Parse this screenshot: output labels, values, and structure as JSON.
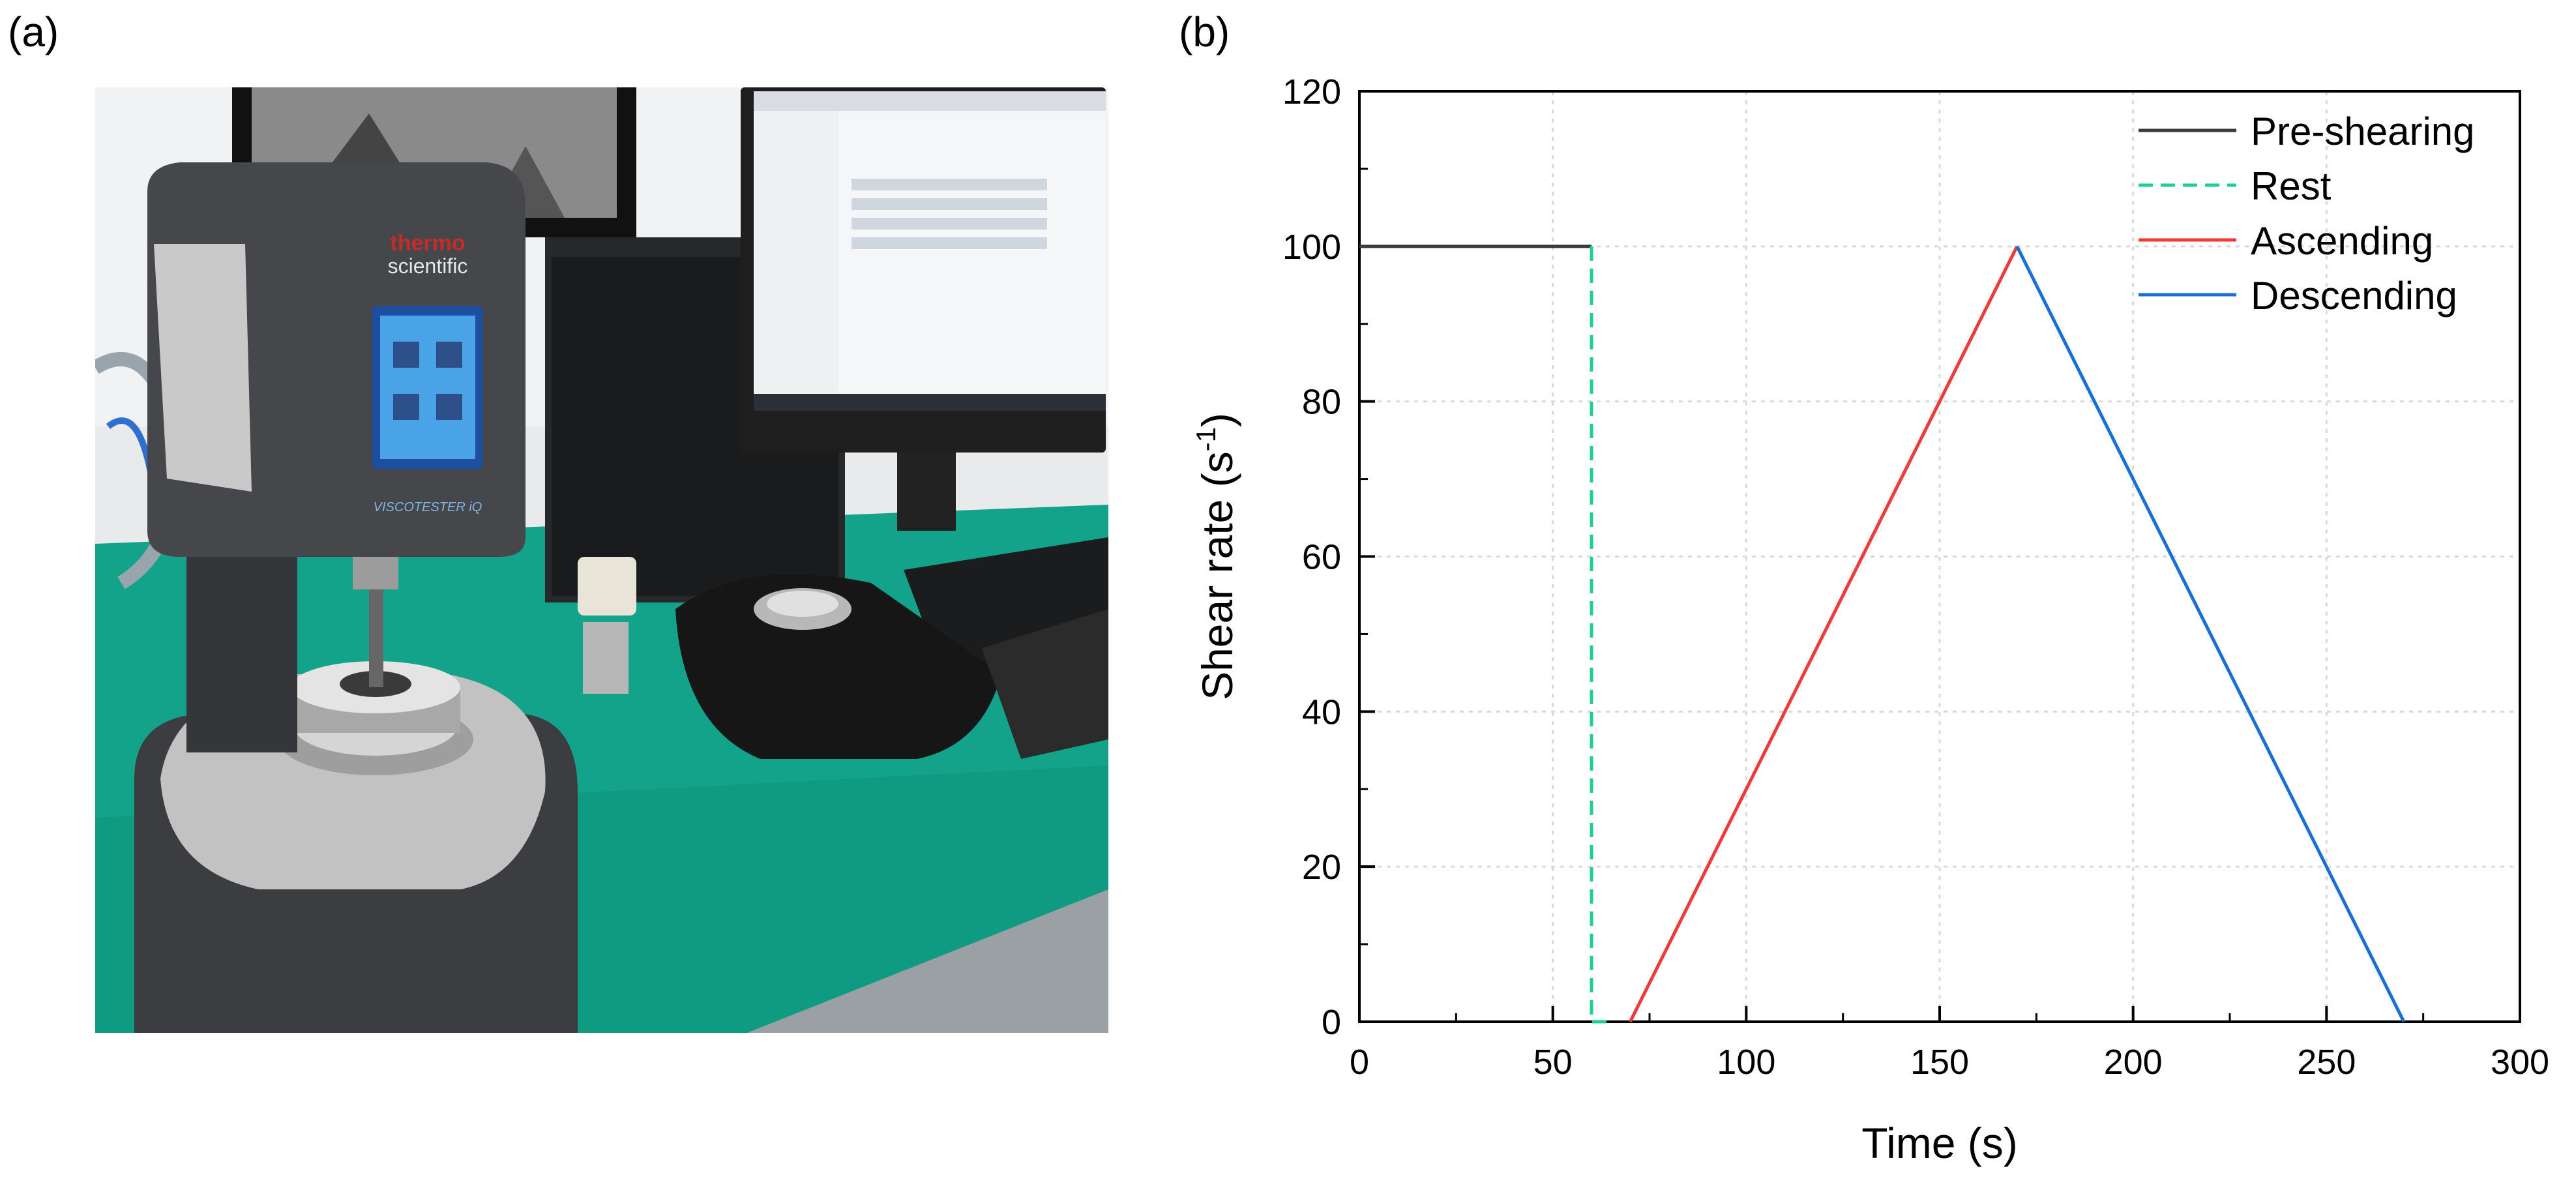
{
  "panels": {
    "a_label": "(a)",
    "b_label": "(b)"
  },
  "photo": {
    "brand_line1": "thermo",
    "brand_line2": "scientific",
    "instrument_name": "VISCOTESTER iQ"
  },
  "chart_data": {
    "type": "line",
    "title": "",
    "xlabel": "Time (s)",
    "ylabel_main": "Shear rate (s",
    "ylabel_sup": "-1",
    "ylabel_close": ")",
    "xlim": [
      0,
      300
    ],
    "ylim": [
      0,
      120
    ],
    "xticks": [
      0,
      50,
      100,
      150,
      200,
      250,
      300
    ],
    "yticks": [
      0,
      20,
      40,
      60,
      80,
      100,
      120
    ],
    "grid": true,
    "legend_position": "top-right",
    "series": [
      {
        "name": "Pre-shearing",
        "color": "#3a3a3a",
        "dash": "solid",
        "x": [
          0,
          60
        ],
        "y": [
          100,
          100
        ]
      },
      {
        "name": "Rest",
        "color": "#1fcf96",
        "dash": "dashed",
        "x": [
          60,
          60,
          65
        ],
        "y": [
          100,
          0,
          0
        ]
      },
      {
        "name": "Ascending",
        "color": "#f03a3a",
        "dash": "solid",
        "x": [
          70,
          170
        ],
        "y": [
          0,
          100
        ]
      },
      {
        "name": "Descending",
        "color": "#1a6fd0",
        "dash": "solid",
        "x": [
          170,
          270
        ],
        "y": [
          100,
          0
        ]
      }
    ]
  }
}
